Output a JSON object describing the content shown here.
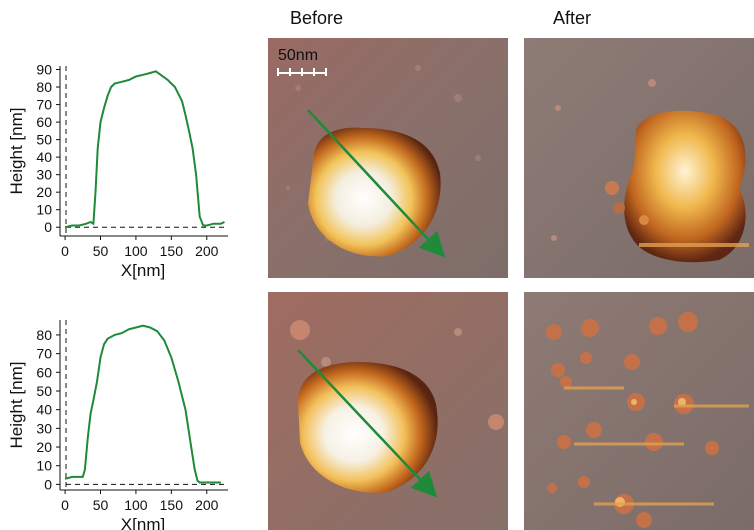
{
  "headers": {
    "before": "Before",
    "after": "After"
  },
  "scale_bar_label": "50nm",
  "chart_data": [
    {
      "type": "line",
      "xlabel": "X[nm]",
      "ylabel": "Height [nm]",
      "xlim": [
        -10,
        230
      ],
      "ylim": [
        -5,
        92
      ],
      "xticks": [
        0,
        50,
        100,
        150,
        200
      ],
      "yticks": [
        0,
        10,
        20,
        30,
        40,
        50,
        60,
        70,
        80,
        90
      ],
      "baseline": 0,
      "color": "#1e8a3a",
      "x": [
        0,
        10,
        20,
        30,
        36,
        40,
        43,
        46,
        50,
        55,
        60,
        65,
        70,
        80,
        90,
        100,
        110,
        120,
        128,
        135,
        145,
        155,
        165,
        170,
        175,
        180,
        185,
        190,
        195,
        200,
        210,
        220,
        225
      ],
      "y": [
        0,
        1,
        1,
        2,
        3,
        2,
        20,
        45,
        60,
        68,
        75,
        80,
        82,
        83,
        84,
        86,
        87,
        88,
        89,
        87,
        84,
        80,
        72,
        64,
        55,
        45,
        30,
        6,
        1,
        1,
        2,
        2,
        3
      ]
    },
    {
      "type": "line",
      "xlabel": "X[nm]",
      "ylabel": "Height [nm]",
      "xlim": [
        -10,
        230
      ],
      "ylim": [
        -3,
        88
      ],
      "xticks": [
        0,
        50,
        100,
        150,
        200
      ],
      "yticks": [
        0,
        10,
        20,
        30,
        40,
        50,
        60,
        70,
        80
      ],
      "baseline": 0,
      "color": "#1e8a3a",
      "x": [
        0,
        10,
        20,
        25,
        28,
        32,
        36,
        40,
        45,
        50,
        55,
        60,
        70,
        80,
        90,
        100,
        110,
        120,
        130,
        140,
        150,
        160,
        170,
        178,
        183,
        187,
        190,
        195,
        200,
        210,
        220
      ],
      "y": [
        3,
        4,
        4,
        4,
        8,
        25,
        38,
        45,
        55,
        68,
        75,
        78,
        80,
        81,
        83,
        84,
        85,
        84,
        82,
        77,
        68,
        55,
        40,
        20,
        8,
        2,
        1,
        1,
        1,
        1,
        1
      ]
    }
  ]
}
